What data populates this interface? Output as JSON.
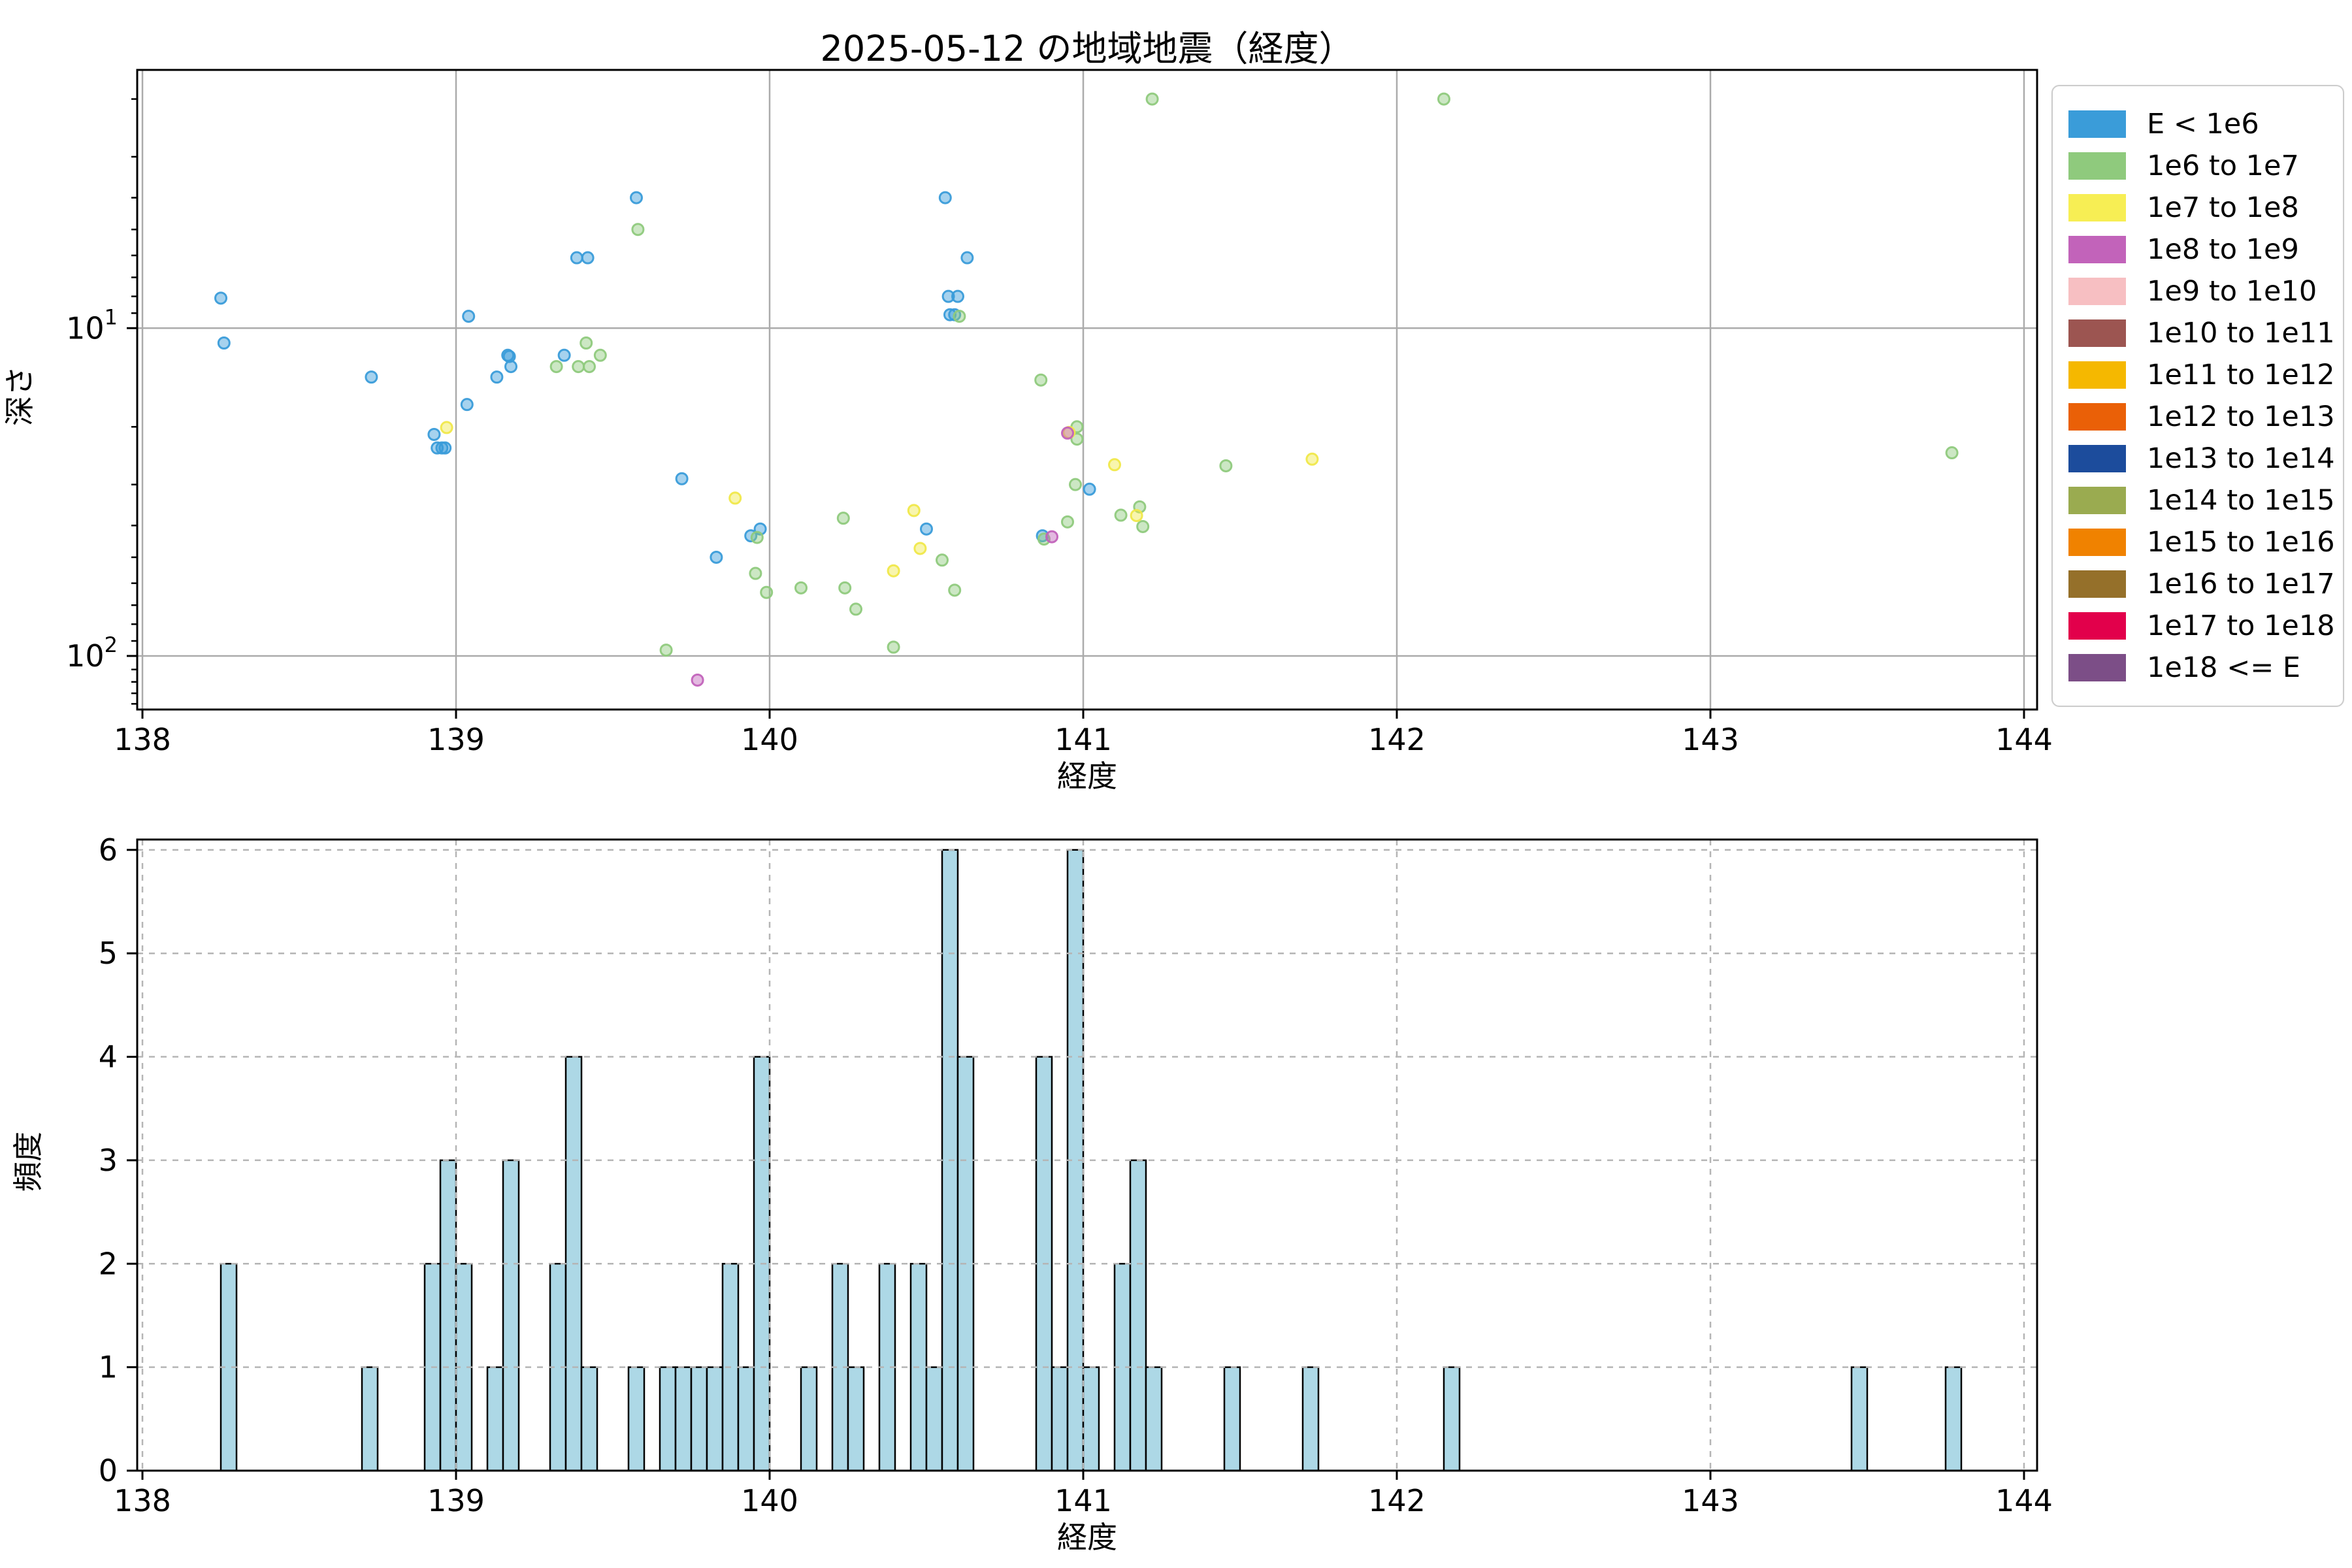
{
  "page": {
    "title": "2025-05-12 の地域地震（経度）"
  },
  "legend": {
    "items": [
      {
        "label": "E < 1e6",
        "color": "#3A9CD9"
      },
      {
        "label": "1e6 to 1e7",
        "color": "#8FCA7D"
      },
      {
        "label": "1e7 to 1e8",
        "color": "#F7EE54"
      },
      {
        "label": "1e8 to 1e9",
        "color": "#C263BA"
      },
      {
        "label": "1e9 to 1e10",
        "color": "#F7BFC2"
      },
      {
        "label": "1e10 to 1e11",
        "color": "#9C5551"
      },
      {
        "label": "1e11 to 1e12",
        "color": "#F5B800"
      },
      {
        "label": "1e12 to 1e13",
        "color": "#EA6007"
      },
      {
        "label": "1e13 to 1e14",
        "color": "#1C4C9C"
      },
      {
        "label": "1e14 to 1e15",
        "color": "#9AAB50"
      },
      {
        "label": "1e15 to 1e16",
        "color": "#F08200"
      },
      {
        "label": "1e16 to 1e17",
        "color": "#95702A"
      },
      {
        "label": "1e17 to 1e18",
        "color": "#E2004B"
      },
      {
        "label": "1e18 <= E",
        "color": "#7C4E87"
      }
    ]
  },
  "chart_data": [
    {
      "type": "scatter",
      "title": "2025-05-12 の地域地震（経度）",
      "xlabel": "経度",
      "ylabel": "深さ",
      "xlim": [
        137.9833,
        144.0417
      ],
      "xticks": [
        138,
        139,
        140,
        141,
        142,
        143,
        144
      ],
      "yscale": "log",
      "y_inverted": true,
      "ylim": [
        1.63,
        145.7
      ],
      "ytick_exponents": [
        1,
        2
      ],
      "yminor_depths": [
        2,
        3,
        4,
        5,
        6,
        7,
        8,
        9,
        20,
        30,
        40,
        50,
        60,
        70,
        80,
        90,
        110,
        120,
        130,
        140
      ],
      "grid": true,
      "legend_position": "right",
      "series": [
        {
          "label": "E < 1e6",
          "color": "#3A9CD9",
          "points": [
            [
              138.25,
              8.1
            ],
            [
              138.26,
              11.1
            ],
            [
              138.73,
              14.1
            ],
            [
              138.93,
              21.1
            ],
            [
              138.94,
              23.2
            ],
            [
              138.955,
              23.2
            ],
            [
              138.965,
              23.2
            ],
            [
              139.035,
              17.1
            ],
            [
              139.04,
              9.2
            ],
            [
              139.13,
              14.1
            ],
            [
              139.165,
              12.1
            ],
            [
              139.17,
              12.2
            ],
            [
              139.175,
              13.1
            ],
            [
              139.345,
              12.1
            ],
            [
              139.385,
              6.1
            ],
            [
              139.42,
              6.1
            ],
            [
              139.575,
              4.0
            ],
            [
              139.72,
              28.8
            ],
            [
              139.83,
              50
            ],
            [
              139.94,
              43
            ],
            [
              139.97,
              41
            ],
            [
              140.5,
              41
            ],
            [
              140.56,
              4.0
            ],
            [
              140.57,
              8.0
            ],
            [
              140.575,
              9.1
            ],
            [
              140.59,
              9.1
            ],
            [
              140.6,
              8.0
            ],
            [
              140.63,
              6.1
            ],
            [
              140.87,
              43
            ],
            [
              141.02,
              31
            ]
          ]
        },
        {
          "label": "1e6 to 1e7",
          "color": "#8FCA7D",
          "points": [
            [
              139.32,
              13.1
            ],
            [
              139.39,
              13.1
            ],
            [
              139.415,
              11.1
            ],
            [
              139.425,
              13.1
            ],
            [
              139.46,
              12.1
            ],
            [
              139.58,
              5.0
            ],
            [
              139.67,
              96
            ],
            [
              139.955,
              56
            ],
            [
              139.96,
              43.5
            ],
            [
              139.99,
              64
            ],
            [
              140.1,
              62
            ],
            [
              140.235,
              38
            ],
            [
              140.24,
              62
            ],
            [
              140.275,
              72
            ],
            [
              140.395,
              94
            ],
            [
              140.55,
              51
            ],
            [
              140.59,
              63
            ],
            [
              140.605,
              9.2
            ],
            [
              140.865,
              14.4
            ],
            [
              140.875,
              44
            ],
            [
              140.95,
              39
            ],
            [
              140.975,
              30
            ],
            [
              140.98,
              20.0
            ],
            [
              140.98,
              21.8
            ],
            [
              141.12,
              37.2
            ],
            [
              141.18,
              35.1
            ],
            [
              141.19,
              40.3
            ],
            [
              141.22,
              2.0
            ],
            [
              141.455,
              26.3
            ],
            [
              142.15,
              2.0
            ],
            [
              143.77,
              24.0
            ]
          ]
        },
        {
          "label": "1e7 to 1e8",
          "color": "#F0E84A",
          "points": [
            [
              138.97,
              20.1
            ],
            [
              139.89,
              33
            ],
            [
              140.395,
              55
            ],
            [
              140.46,
              36
            ],
            [
              140.48,
              47
            ],
            [
              140.955,
              20.8
            ],
            [
              141.1,
              26.1
            ],
            [
              141.17,
              37.3
            ],
            [
              141.73,
              25.1
            ]
          ]
        },
        {
          "label": "1e8 to 1e9",
          "color": "#C263BA",
          "points": [
            [
              139.77,
              118.5
            ],
            [
              140.9,
              43.3
            ],
            [
              140.95,
              20.9
            ]
          ]
        }
      ]
    },
    {
      "type": "bar",
      "title": "",
      "xlabel": "経度",
      "ylabel": "頻度",
      "xlim": [
        137.9833,
        144.0417
      ],
      "xticks": [
        138,
        139,
        140,
        141,
        142,
        143,
        144
      ],
      "ylim": [
        0,
        6.1
      ],
      "yticks": [
        0,
        1,
        2,
        3,
        4,
        5,
        6
      ],
      "grid": "dashed",
      "bin_width": 0.05,
      "bar_fill": "#ADD8E6",
      "bar_edge": "#000000",
      "bars": [
        [
          138.25,
          2
        ],
        [
          138.7,
          1
        ],
        [
          138.9,
          2
        ],
        [
          138.95,
          3
        ],
        [
          139.0,
          2
        ],
        [
          139.1,
          1
        ],
        [
          139.15,
          3
        ],
        [
          139.3,
          2
        ],
        [
          139.35,
          4
        ],
        [
          139.4,
          1
        ],
        [
          139.55,
          1
        ],
        [
          139.65,
          1
        ],
        [
          139.7,
          1
        ],
        [
          139.75,
          1
        ],
        [
          139.8,
          1
        ],
        [
          139.85,
          2
        ],
        [
          139.9,
          1
        ],
        [
          139.95,
          4
        ],
        [
          140.1,
          1
        ],
        [
          140.2,
          2
        ],
        [
          140.25,
          1
        ],
        [
          140.35,
          2
        ],
        [
          140.45,
          2
        ],
        [
          140.5,
          1
        ],
        [
          140.55,
          6
        ],
        [
          140.6,
          4
        ],
        [
          140.85,
          4
        ],
        [
          140.9,
          1
        ],
        [
          140.95,
          6
        ],
        [
          141.0,
          1
        ],
        [
          141.1,
          2
        ],
        [
          141.15,
          3
        ],
        [
          141.2,
          1
        ],
        [
          141.45,
          1
        ],
        [
          141.7,
          1
        ],
        [
          142.15,
          1
        ],
        [
          143.45,
          1
        ],
        [
          143.75,
          1
        ]
      ]
    }
  ]
}
